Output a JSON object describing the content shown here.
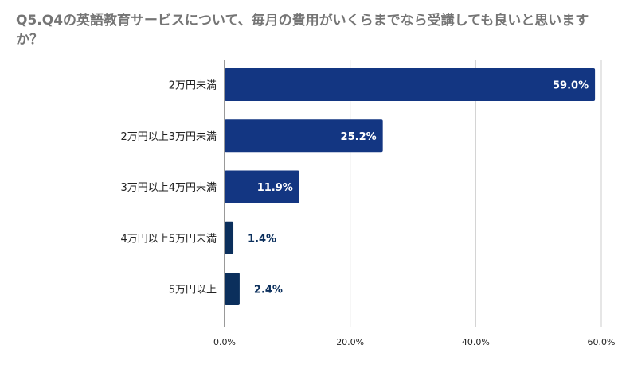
{
  "chart_data": {
    "type": "bar",
    "orientation": "horizontal",
    "title": "Q5.Q4の英語教育サービスについて、毎月の費用がいくらまでなら受講しても良いと思いますか？",
    "categories": [
      "2万円未満",
      "2万円以上3万円未満",
      "3万円以上4万円未満",
      "4万円以上5万円未満",
      "5万円以上"
    ],
    "values": [
      59.0,
      25.2,
      11.9,
      1.4,
      2.4
    ],
    "value_labels": [
      "59.0%",
      "25.2%",
      "11.9%",
      "1.4%",
      "2.4%"
    ],
    "xlim": [
      0,
      60
    ],
    "ticks": [
      "0.0%",
      "20.0%",
      "40.0%",
      "60.0%"
    ],
    "grid": true,
    "colors": {
      "bar": "#133682",
      "bar_small": "#0b2f5c",
      "label_inside": "#ffffff",
      "label_outside": "#0b2f5c",
      "grid": "#cccccc",
      "title": "#757575"
    }
  }
}
